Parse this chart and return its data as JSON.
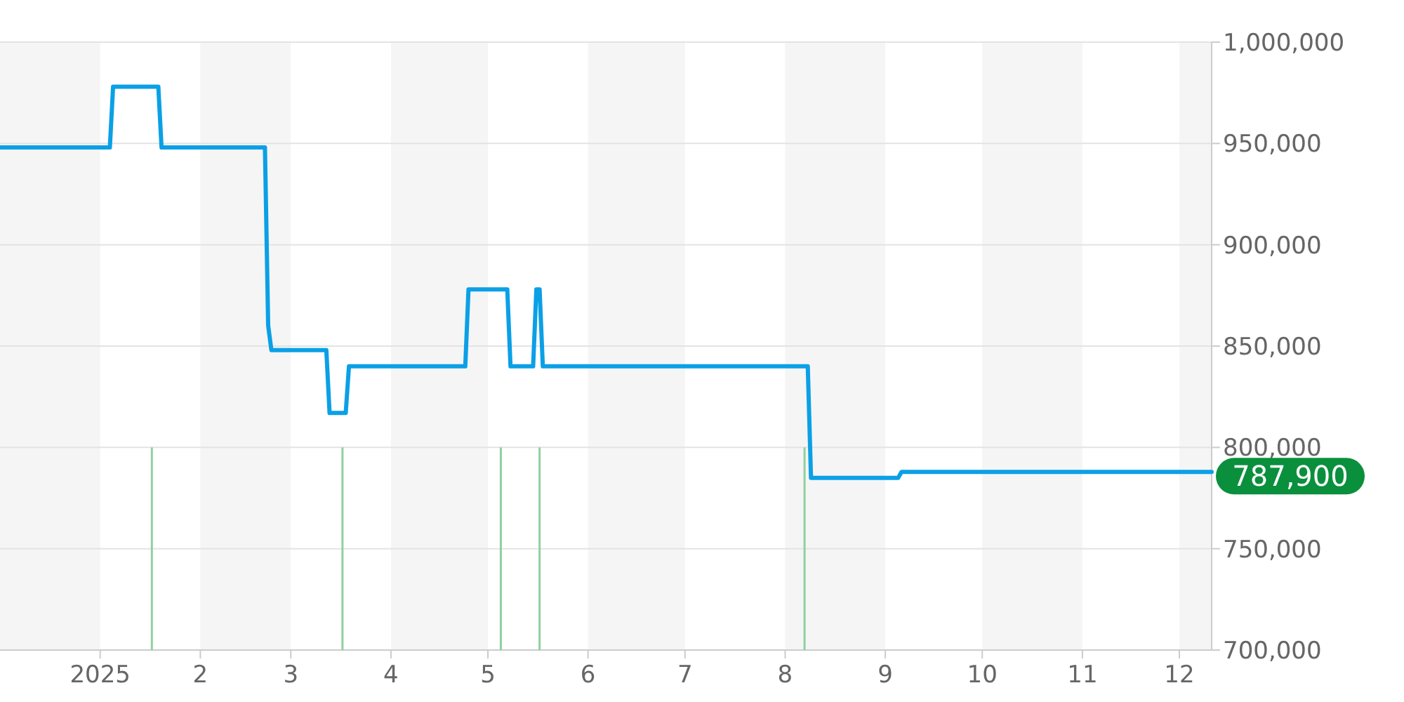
{
  "chart_data": {
    "type": "line",
    "x": [
      "2024-12-01",
      "2025-01-04",
      "2025-01-05",
      "2025-01-19",
      "2025-01-20",
      "2025-02-21",
      "2025-02-22",
      "2025-02-23",
      "2025-03-12",
      "2025-03-13",
      "2025-03-18",
      "2025-03-19",
      "2025-04-24",
      "2025-04-25",
      "2025-05-07",
      "2025-05-08",
      "2025-05-15",
      "2025-05-16",
      "2025-05-17",
      "2025-05-18",
      "2025-08-08",
      "2025-08-09",
      "2025-09-05",
      "2025-09-06",
      "2025-12-11"
    ],
    "series": [
      {
        "color": "#0ba0e6",
        "values": [
          948000,
          948000,
          978000,
          978000,
          948000,
          948000,
          860000,
          848000,
          848000,
          817000,
          817000,
          840000,
          840000,
          878000,
          878000,
          840000,
          840000,
          878000,
          878000,
          840000,
          840000,
          785000,
          785000,
          787900,
          787900
        ]
      },
      {
        "type": "bar",
        "color": "#8fd19e",
        "x": [
          "2025-01-17",
          "2025-03-17",
          "2025-05-05",
          "2025-05-17",
          "2025-08-07"
        ],
        "values": [
          800000,
          800000,
          800000,
          800000,
          800000
        ]
      }
    ],
    "xlim": [
      "2024-12-01",
      "2025-12-11"
    ],
    "xticks": [
      {
        "value": "2025-01-01",
        "label": "2025"
      },
      {
        "value": "2025-02-01",
        "label": "2"
      },
      {
        "value": "2025-03-01",
        "label": "3"
      },
      {
        "value": "2025-04-01",
        "label": "4"
      },
      {
        "value": "2025-05-01",
        "label": "5"
      },
      {
        "value": "2025-06-01",
        "label": "6"
      },
      {
        "value": "2025-07-01",
        "label": "7"
      },
      {
        "value": "2025-08-01",
        "label": "8"
      },
      {
        "value": "2025-09-01",
        "label": "9"
      },
      {
        "value": "2025-10-01",
        "label": "10"
      },
      {
        "value": "2025-11-01",
        "label": "11"
      },
      {
        "value": "2025-12-01",
        "label": "12"
      }
    ],
    "ylim": [
      700000,
      1000000
    ],
    "yticks": [
      {
        "value": 700000,
        "label": "700,000"
      },
      {
        "value": 750000,
        "label": "750,000"
      },
      {
        "value": 800000,
        "label": "800,000"
      },
      {
        "value": 850000,
        "label": "850,000"
      },
      {
        "value": 900000,
        "label": "900,000"
      },
      {
        "value": 950000,
        "label": "950,000"
      },
      {
        "value": 1000000,
        "label": "1,000,000"
      }
    ],
    "grid": "y",
    "bands": [
      {
        "axis": "x",
        "from": "2024-12-01",
        "to": "2025-01-01",
        "color": "#f5f5f5"
      },
      {
        "axis": "x",
        "from": "2025-02-01",
        "to": "2025-03-01",
        "color": "#f5f5f5"
      },
      {
        "axis": "x",
        "from": "2025-04-01",
        "to": "2025-05-01",
        "color": "#f5f5f5"
      },
      {
        "axis": "x",
        "from": "2025-06-01",
        "to": "2025-07-01",
        "color": "#f5f5f5"
      },
      {
        "axis": "x",
        "from": "2025-08-01",
        "to": "2025-09-01",
        "color": "#f5f5f5"
      },
      {
        "axis": "x",
        "from": "2025-10-01",
        "to": "2025-11-01",
        "color": "#f5f5f5"
      },
      {
        "axis": "x",
        "from": "2025-12-01",
        "to": "2025-12-11",
        "color": "#f5f5f5"
      }
    ],
    "annotations": [
      {
        "text": "787,900",
        "x": "2025-12-11",
        "y": 787900
      }
    ]
  }
}
